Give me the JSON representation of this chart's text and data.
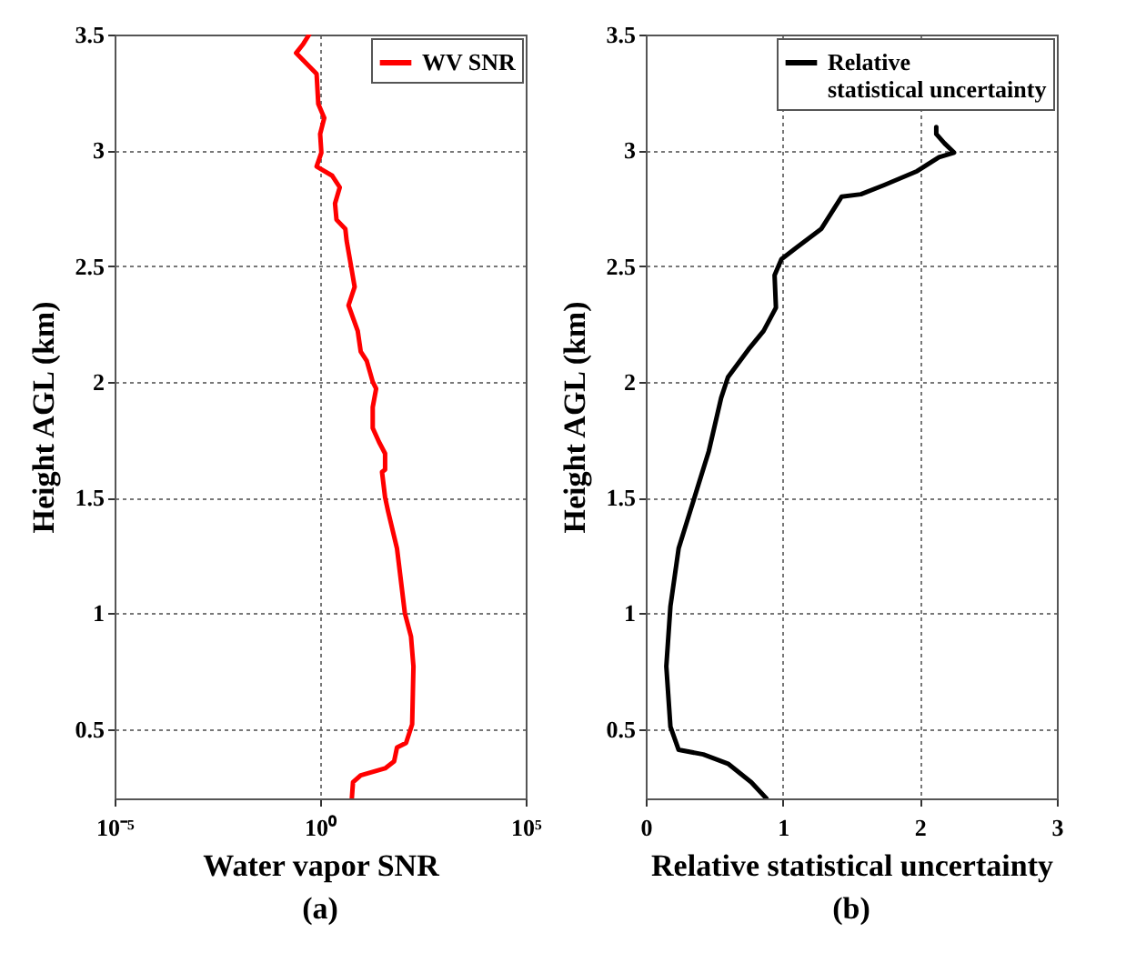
{
  "chart_data": [
    {
      "type": "line",
      "title": "(a)",
      "xlabel": "Water vapor SNR",
      "ylabel": "Height AGL (km)",
      "log": "x",
      "grid": true,
      "legend": "top right",
      "line_style": "solid",
      "xlim": [
        1e-05,
        100000
      ],
      "xticks": [
        {
          "value": 1e-05,
          "label": "10⁻⁵"
        },
        {
          "value": 1,
          "label": "10⁰"
        },
        {
          "value": 100000,
          "label": "10⁵"
        }
      ],
      "ylim": [
        0.2,
        3.5
      ],
      "yticks": [
        0.5,
        1,
        1.5,
        2,
        2.5,
        3,
        3.5
      ],
      "series": [
        {
          "name": "WV SNR",
          "color": "#ff0000",
          "x": [
            5.9,
            6.3,
            9.7,
            38,
            63,
            74,
            123,
            173,
            186,
            162,
            115,
            74,
            45,
            38,
            32,
            38,
            38,
            27,
            19,
            19,
            23,
            19,
            13.6,
            9.7,
            8.2,
            4.9,
            6.9,
            5.9,
            4.4,
            4.1,
            2.5,
            2.3,
            3.0,
            1.97,
            0.82,
            1.07,
            1,
            1.26,
            0.9,
            0.82,
            0.26,
            0.39,
            0.54
          ],
          "values": [
            0.2,
            0.27,
            0.3,
            0.33,
            0.36,
            0.42,
            0.44,
            0.52,
            0.77,
            0.9,
            1.0,
            1.28,
            1.44,
            1.5,
            1.61,
            1.62,
            1.69,
            1.74,
            1.8,
            1.89,
            1.97,
            2.0,
            2.09,
            2.13,
            2.22,
            2.33,
            2.41,
            2.48,
            2.61,
            2.66,
            2.7,
            2.77,
            2.84,
            2.89,
            2.93,
            2.99,
            3.07,
            3.14,
            3.2,
            3.33,
            3.42,
            3.46,
            3.5
          ]
        }
      ]
    },
    {
      "type": "line",
      "title": "(b)",
      "xlabel": "Relative statistical uncertainty",
      "ylabel": "Height AGL (km)",
      "grid": true,
      "legend": "top right",
      "line_style": "solid",
      "xlim": [
        0,
        3
      ],
      "xticks": [
        0,
        1,
        2,
        3
      ],
      "ylim": [
        0.2,
        3.5
      ],
      "yticks": [
        0.5,
        1,
        1.5,
        2,
        2.5,
        3,
        3.5
      ],
      "series": [
        {
          "name": "Relative statistical uncertainty",
          "color": "#000000",
          "x": [
            0.88,
            0.77,
            0.6,
            0.42,
            0.24,
            0.18,
            0.15,
            0.18,
            0.24,
            0.35,
            0.46,
            0.55,
            0.6,
            0.75,
            0.86,
            0.95,
            0.94,
            0.99,
            1.1,
            1.28,
            1.43,
            1.57,
            1.74,
            1.98,
            2.14,
            2.25,
            2.18,
            2.12,
            2.12
          ],
          "values": [
            0.2,
            0.27,
            0.35,
            0.39,
            0.41,
            0.51,
            0.77,
            1.03,
            1.28,
            1.49,
            1.7,
            1.93,
            2.02,
            2.14,
            2.22,
            2.32,
            2.46,
            2.53,
            2.58,
            2.66,
            2.8,
            2.81,
            2.85,
            2.91,
            2.97,
            2.99,
            3.03,
            3.07,
            3.1
          ]
        }
      ]
    }
  ]
}
